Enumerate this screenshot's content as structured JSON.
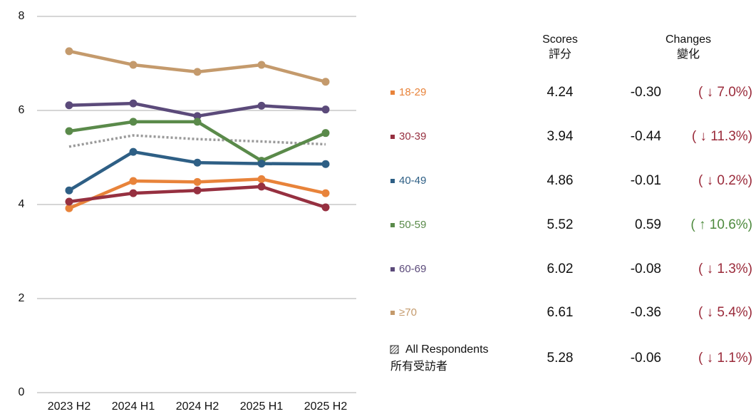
{
  "chart_data": {
    "type": "line",
    "categories": [
      "2023 H2",
      "2024 H1",
      "2024 H2",
      "2025 H1",
      "2025 H2"
    ],
    "ylim": [
      0,
      8
    ],
    "yticks": [
      0,
      2,
      4,
      6,
      8
    ],
    "grid": true,
    "series": [
      {
        "name": "18-29",
        "color": "#e8833a",
        "values": [
          3.92,
          4.5,
          4.48,
          4.54,
          4.24
        ]
      },
      {
        "name": "30-39",
        "color": "#963040",
        "values": [
          4.06,
          4.24,
          4.3,
          4.38,
          3.94
        ]
      },
      {
        "name": "40-49",
        "color": "#2e5f85",
        "values": [
          4.3,
          5.12,
          4.89,
          4.87,
          4.86
        ]
      },
      {
        "name": "50-59",
        "color": "#5a8a4a",
        "values": [
          5.56,
          5.76,
          5.76,
          4.93,
          5.52
        ]
      },
      {
        "name": "60-69",
        "color": "#5b4a7a",
        "values": [
          6.11,
          6.15,
          5.88,
          6.1,
          6.02
        ]
      },
      {
        "name": "≥70",
        "color": "#c49a6c",
        "values": [
          7.26,
          6.97,
          6.82,
          6.97,
          6.61
        ]
      },
      {
        "name": "All Respondents",
        "name_zh": "所有受訪者",
        "color": "#9a9a9a",
        "dashed": true,
        "values": [
          5.23,
          5.47,
          5.39,
          5.34,
          5.28
        ]
      }
    ]
  },
  "table": {
    "headers": {
      "scores": "Scores",
      "scores_zh": "評分",
      "changes": "Changes",
      "changes_zh": "變化"
    },
    "rows": [
      {
        "score": "4.24",
        "change": "-0.30",
        "percent": "( ↓ 7.0%)",
        "color": "#9a2a3a"
      },
      {
        "score": "3.94",
        "change": "-0.44",
        "percent": "( ↓ 11.3%)",
        "color": "#9a2a3a"
      },
      {
        "score": "4.86",
        "change": "-0.01",
        "percent": "( ↓ 0.2%)",
        "color": "#9a2a3a"
      },
      {
        "score": "5.52",
        "change": "0.59",
        "percent": "( ↑ 10.6%)",
        "color": "#4e8a3e"
      },
      {
        "score": "6.02",
        "change": "-0.08",
        "percent": "( ↓ 1.3%)",
        "color": "#9a2a3a"
      },
      {
        "score": "6.61",
        "change": "-0.36",
        "percent": "( ↓ 5.4%)",
        "color": "#9a2a3a"
      },
      {
        "score": "5.28",
        "change": "-0.06",
        "percent": "( ↓ 1.1%)",
        "color": "#9a2a3a"
      }
    ]
  }
}
